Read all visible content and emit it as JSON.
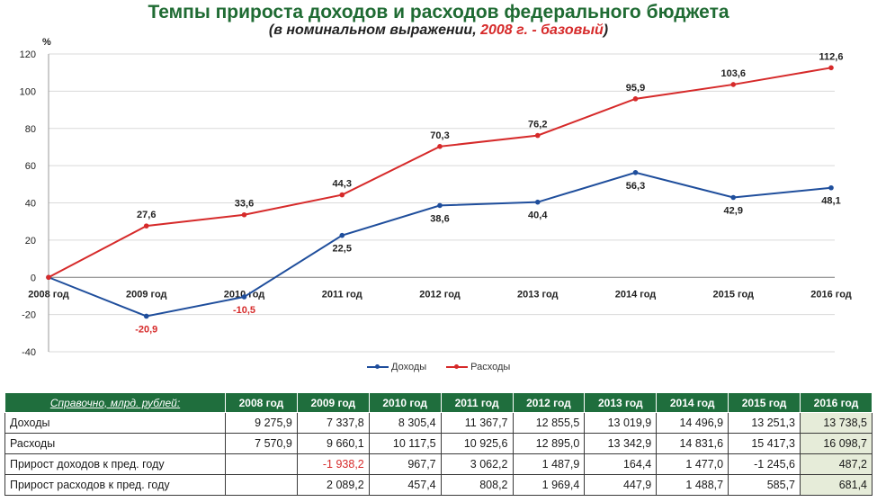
{
  "header": {
    "title": "Темпы прироста доходов и расходов федерального бюджета",
    "subtitle_prefix": "(в номинальном выражении, ",
    "subtitle_highlight": "2008 г. - базовый",
    "subtitle_suffix": ")"
  },
  "colors": {
    "title": "#1f6b33",
    "income": "#1f4e9c",
    "expense": "#d62a2a",
    "table_header": "#1f6e3d",
    "table_highlight": "#e6ecd9",
    "negative_label": "#d62a2a"
  },
  "chart_data": {
    "type": "line",
    "ylabel": "%",
    "ylim": [
      -40,
      120
    ],
    "yticks": [
      -40,
      -20,
      0,
      20,
      40,
      60,
      80,
      100,
      120
    ],
    "categories": [
      "2008 год",
      "2009 год",
      "2010 год",
      "2011 год",
      "2012 год",
      "2013 год",
      "2014 год",
      "2015 год",
      "2016 год"
    ],
    "series": [
      {
        "name": "Доходы",
        "color": "#1f4e9c",
        "values": [
          0,
          -20.9,
          -10.5,
          22.5,
          38.6,
          40.4,
          56.3,
          42.9,
          48.1
        ],
        "labels": [
          "",
          "-20,9",
          "-10,5",
          "22,5",
          "38,6",
          "40,4",
          "56,3",
          "42,9",
          "48,1"
        ]
      },
      {
        "name": "Расходы",
        "color": "#d62a2a",
        "values": [
          0,
          27.6,
          33.6,
          44.3,
          70.3,
          76.2,
          95.9,
          103.6,
          112.6
        ],
        "labels": [
          "",
          "27,6",
          "33,6",
          "44,3",
          "70,3",
          "76,2",
          "95,9",
          "103,6",
          "112,6"
        ]
      }
    ],
    "grid": "horizontal",
    "legend": "bottom-center"
  },
  "reference_table": {
    "header_label": "Справочно, млрд. рублей:",
    "columns": [
      "2008 год",
      "2009 год",
      "2010 год",
      "2011 год",
      "2012 год",
      "2013 год",
      "2014 год",
      "2015 год",
      "2016 год"
    ],
    "rows": [
      {
        "label": "Доходы",
        "cells": [
          "9 275,9",
          "7 337,8",
          "8 305,4",
          "11 367,7",
          "12 855,5",
          "13 019,9",
          "14 496,9",
          "13 251,3",
          "13 738,5"
        ]
      },
      {
        "label": "Расходы",
        "cells": [
          "7 570,9",
          "9 660,1",
          "10 117,5",
          "10 925,6",
          "12 895,0",
          "13 342,9",
          "14 831,6",
          "15 417,3",
          "16 098,7"
        ]
      },
      {
        "label": "Прирост доходов к пред. году",
        "cells": [
          "",
          "-1 938,2",
          "967,7",
          "3 062,2",
          "1 487,9",
          "164,4",
          "1 477,0",
          "-1 245,6",
          "487,2"
        ],
        "red_cells": [
          1
        ]
      },
      {
        "label": "Прирост расходов к пред. году",
        "cells": [
          "",
          "2 089,2",
          "457,4",
          "808,2",
          "1 969,4",
          "447,9",
          "1 488,7",
          "585,7",
          "681,4"
        ]
      }
    ]
  }
}
